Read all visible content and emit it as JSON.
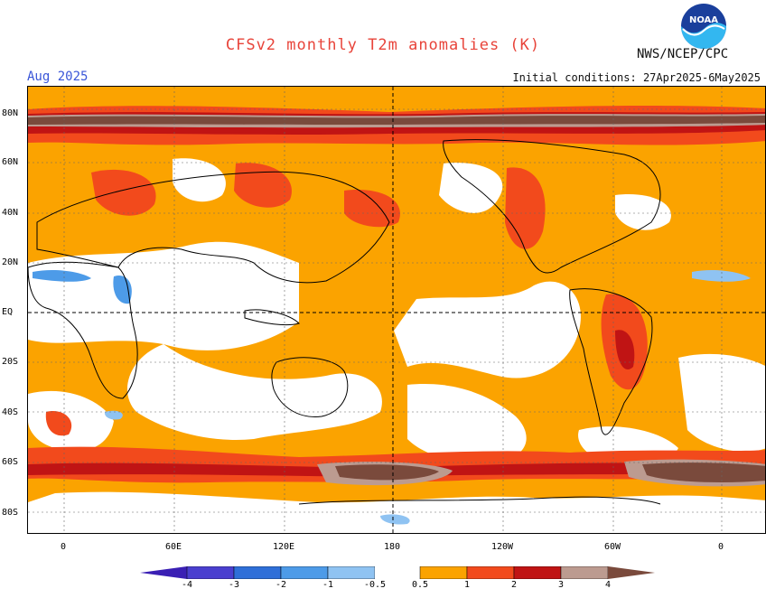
{
  "title": "CFSv2 monthly T2m anomalies (K)",
  "forecast_month": "Aug 2025",
  "agency": "NWS/NCEP/CPC",
  "initial_conditions": "Initial conditions: 27Apr2025-6May2025",
  "logo_text": "NOAA",
  "colors": {
    "title": "#e8443a",
    "month": "#3a56d8",
    "neg4": "#3a1fb4",
    "neg3": "#4a3fcf",
    "neg2": "#2f6fd8",
    "neg1": "#4d9be8",
    "neg05": "#8fc3f2",
    "pos05": "#fba300",
    "pos1": "#f24a1c",
    "pos2": "#c01414",
    "pos3": "#bc9b90",
    "pos4": "#7a4a3c"
  },
  "latitude_labels": [
    "80N",
    "60N",
    "40N",
    "20N",
    "EQ",
    "20S",
    "40S",
    "60S",
    "80S"
  ],
  "longitude_labels": [
    "0",
    "60E",
    "120E",
    "180",
    "120W",
    "60W",
    "0"
  ],
  "colorbar_labels": [
    "-4",
    "-3",
    "-2",
    "-1",
    "-0.5",
    "0.5",
    "1",
    "2",
    "3",
    "4"
  ]
}
